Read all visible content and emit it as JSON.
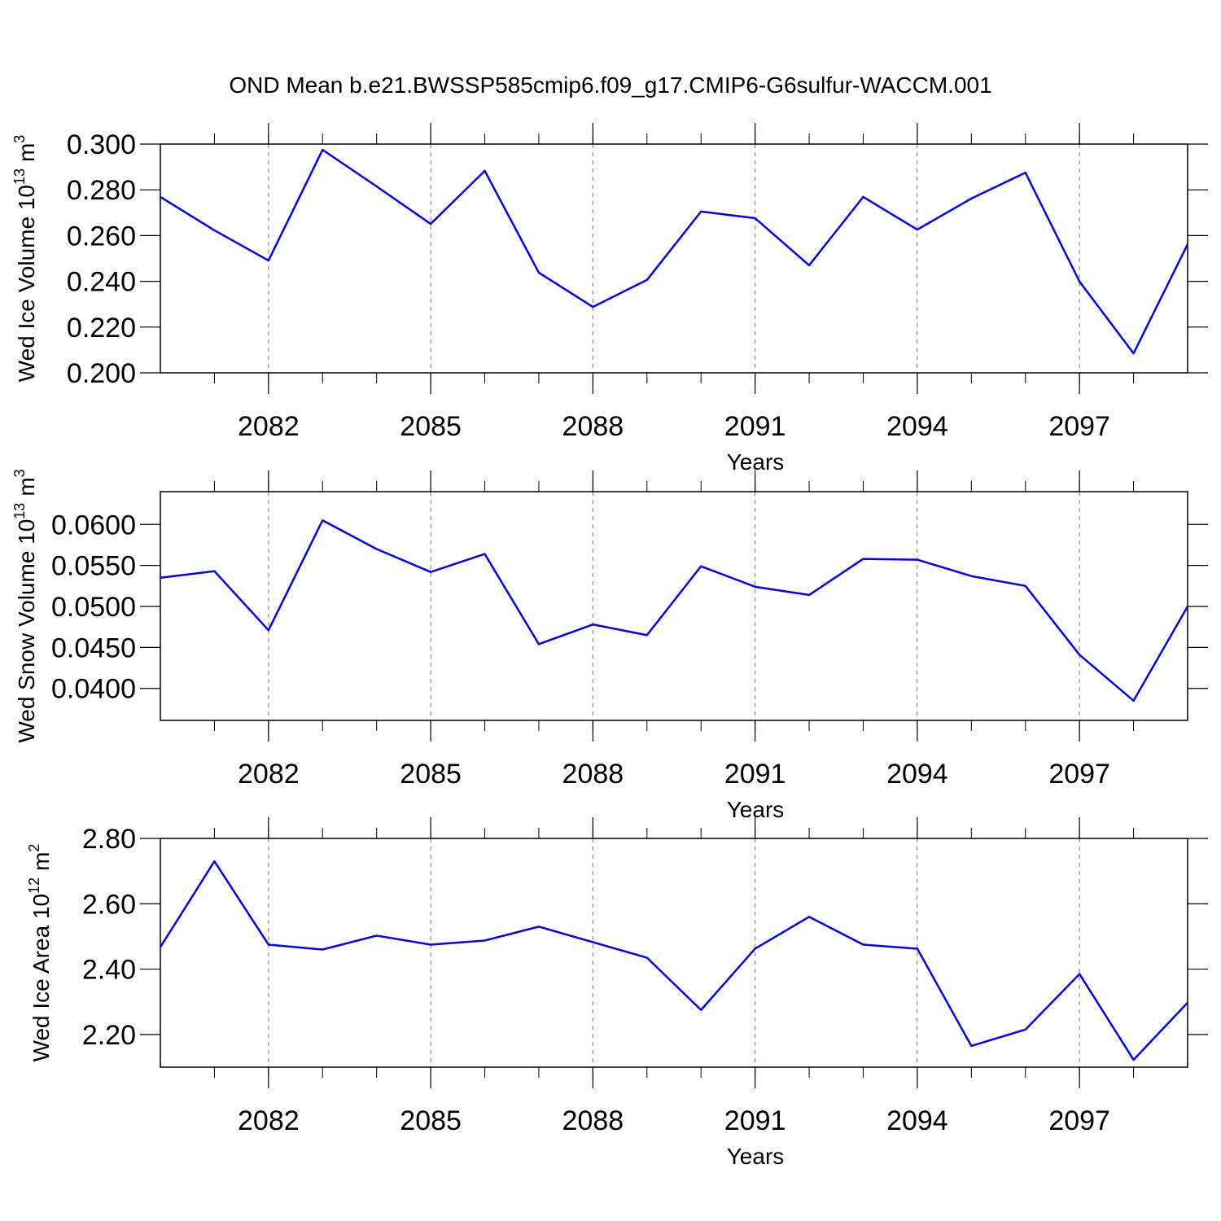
{
  "chart_data": [
    {
      "type": "line",
      "title": "OND Mean b.e21.BWSSP585cmip6.f09_g17.CMIP6-G6sulfur-WACCM.001",
      "x": [
        2080,
        2081,
        2082,
        2083,
        2084,
        2085,
        2086,
        2087,
        2088,
        2089,
        2090,
        2091,
        2092,
        2093,
        2094,
        2095,
        2096,
        2097,
        2098,
        2099
      ],
      "values": [
        0.2769,
        0.2623,
        0.2491,
        0.2975,
        0.2815,
        0.2651,
        0.2883,
        0.2438,
        0.2288,
        0.2406,
        0.2705,
        0.2676,
        0.247,
        0.2769,
        0.2626,
        0.2762,
        0.2875,
        0.2399,
        0.2085,
        0.2562
      ],
      "color": "#0000ff",
      "xlabel": "Years",
      "ylabel_parts": [
        "Wed Ice Volume 10",
        "13",
        "m",
        "3"
      ],
      "xlim": [
        2080,
        2099
      ],
      "xticks": [
        2082,
        2085,
        2088,
        2091,
        2094,
        2097
      ],
      "xminorticks": [
        2081,
        2082,
        2083,
        2084,
        2085,
        2086,
        2087,
        2088,
        2089,
        2090,
        2091,
        2092,
        2093,
        2094,
        2095,
        2096,
        2097,
        2098
      ],
      "ylim": [
        0.2,
        0.3
      ],
      "yticks": [
        {
          "value": 0.2,
          "label": "0.200"
        },
        {
          "value": 0.22,
          "label": "0.220"
        },
        {
          "value": 0.24,
          "label": "0.240"
        },
        {
          "value": 0.26,
          "label": "0.260"
        },
        {
          "value": 0.28,
          "label": "0.280"
        },
        {
          "value": 0.3,
          "label": "0.300"
        }
      ],
      "grid": true
    },
    {
      "type": "line",
      "x": [
        2080,
        2081,
        2082,
        2083,
        2084,
        2085,
        2086,
        2087,
        2088,
        2089,
        2090,
        2091,
        2092,
        2093,
        2094,
        2095,
        2096,
        2097,
        2098,
        2099
      ],
      "values": [
        0.0535,
        0.0543,
        0.0471,
        0.0605,
        0.057,
        0.0542,
        0.0564,
        0.0454,
        0.0478,
        0.0465,
        0.0549,
        0.0524,
        0.0514,
        0.0558,
        0.0557,
        0.0537,
        0.0525,
        0.0441,
        0.0385,
        0.05
      ],
      "color": "#0000ff",
      "xlabel": "Years",
      "ylabel_parts": [
        "Wed Snow Volume 10",
        "13",
        "m",
        "3"
      ],
      "xlim": [
        2080,
        2099
      ],
      "xticks": [
        2082,
        2085,
        2088,
        2091,
        2094,
        2097
      ],
      "xminorticks": [
        2081,
        2082,
        2083,
        2084,
        2085,
        2086,
        2087,
        2088,
        2089,
        2090,
        2091,
        2092,
        2093,
        2094,
        2095,
        2096,
        2097,
        2098
      ],
      "ylim": [
        0.0361,
        0.064
      ],
      "yticks": [
        {
          "value": 0.04,
          "label": "0.0400"
        },
        {
          "value": 0.045,
          "label": "0.0450"
        },
        {
          "value": 0.05,
          "label": "0.0500"
        },
        {
          "value": 0.055,
          "label": "0.0550"
        },
        {
          "value": 0.06,
          "label": "0.0600"
        }
      ],
      "grid": true
    },
    {
      "type": "line",
      "x": [
        2080,
        2081,
        2082,
        2083,
        2084,
        2085,
        2086,
        2087,
        2088,
        2089,
        2090,
        2091,
        2092,
        2093,
        2094,
        2095,
        2096,
        2097,
        2098,
        2099
      ],
      "values": [
        2.4675,
        2.73,
        2.475,
        2.46,
        2.5025,
        2.475,
        2.4875,
        2.53,
        2.4825,
        2.435,
        2.275,
        2.4625,
        2.56,
        2.475,
        2.4625,
        2.165,
        2.215,
        2.385,
        2.1225,
        2.2975
      ],
      "color": "#0000ff",
      "xlabel": "Years",
      "ylabel_parts": [
        "Wed Ice Area 10",
        "12",
        "m",
        "2"
      ],
      "xlim": [
        2080,
        2099
      ],
      "xticks": [
        2082,
        2085,
        2088,
        2091,
        2094,
        2097
      ],
      "xminorticks": [
        2081,
        2082,
        2083,
        2084,
        2085,
        2086,
        2087,
        2088,
        2089,
        2090,
        2091,
        2092,
        2093,
        2094,
        2095,
        2096,
        2097,
        2098
      ],
      "ylim": [
        2.1,
        2.8
      ],
      "yticks": [
        {
          "value": 2.2,
          "label": "2.20"
        },
        {
          "value": 2.4,
          "label": "2.40"
        },
        {
          "value": 2.6,
          "label": "2.60"
        },
        {
          "value": 2.8,
          "label": "2.80"
        }
      ],
      "grid": true
    }
  ]
}
